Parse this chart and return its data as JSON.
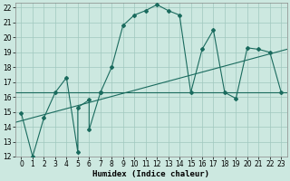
{
  "xlabel": "Humidex (Indice chaleur)",
  "bg_color": "#cce8e0",
  "grid_color": "#a0c8be",
  "line_color": "#1a6b5e",
  "xlim": [
    -0.5,
    23.5
  ],
  "ylim": [
    12,
    22.3
  ],
  "xticks": [
    0,
    1,
    2,
    3,
    4,
    5,
    6,
    7,
    8,
    9,
    10,
    11,
    12,
    13,
    14,
    15,
    16,
    17,
    18,
    19,
    20,
    21,
    22,
    23
  ],
  "yticks": [
    12,
    13,
    14,
    15,
    16,
    17,
    18,
    19,
    20,
    21,
    22
  ],
  "curve1_x": [
    0,
    1,
    2,
    3,
    4,
    5,
    5,
    6,
    6,
    7,
    7,
    8,
    9,
    10,
    11,
    12,
    13,
    14,
    15,
    16,
    17,
    18,
    19,
    20,
    21,
    22,
    23
  ],
  "curve1_y": [
    14.9,
    12.0,
    14.6,
    16.3,
    17.3,
    12.3,
    15.3,
    15.8,
    13.8,
    16.3,
    16.3,
    18.0,
    20.8,
    21.5,
    21.8,
    22.2,
    21.8,
    21.5,
    16.3,
    19.2,
    20.5,
    16.3,
    15.9,
    19.3,
    19.2,
    19.0,
    16.3
  ],
  "curve2_x": [
    -0.5,
    23.5
  ],
  "curve2_y": [
    14.3,
    19.2
  ],
  "curve3_x": [
    -0.5,
    23.5
  ],
  "curve3_y": [
    16.3,
    16.3
  ],
  "font_size_label": 6.5,
  "font_size_tick": 5.5
}
